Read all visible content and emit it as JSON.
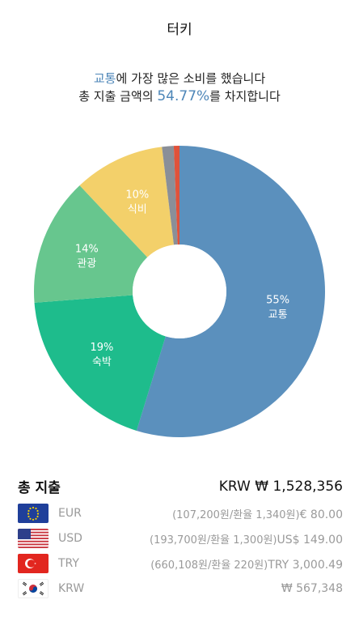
{
  "header": {
    "title": "터키"
  },
  "summary": {
    "line1_highlight": "교통",
    "line1_rest": "에 가장 많은 소비를 했습니다",
    "line2_prefix": "총 지출 금액의 ",
    "line2_pct": "54.77%",
    "line2_suffix": "를 차지합니다"
  },
  "chart_data": {
    "type": "pie",
    "style": "donut",
    "slices": [
      {
        "label": "교통",
        "percent_label": "55%",
        "value": 54.77,
        "color": "#5b90bd"
      },
      {
        "label": "숙박",
        "percent_label": "19%",
        "value": 19.0,
        "color": "#1ebc8c"
      },
      {
        "label": "관광",
        "percent_label": "14%",
        "value": 14.2,
        "color": "#67c68e"
      },
      {
        "label": "식비",
        "percent_label": "10%",
        "value": 10.1,
        "color": "#f3d06a"
      },
      {
        "label": "",
        "percent_label": "",
        "value": 1.3,
        "color": "#8a8f98"
      },
      {
        "label": "",
        "percent_label": "",
        "value": 0.63,
        "color": "#e0523a"
      }
    ]
  },
  "totals": {
    "label": "총 지출",
    "value": "KRW ₩ 1,528,356"
  },
  "currencies": [
    {
      "code": "EUR",
      "flag": "eu-flag-icon",
      "detail": "(107,200원/환율 1,340원)",
      "amount": "€ 80.00"
    },
    {
      "code": "USD",
      "flag": "us-flag-icon",
      "detail": "(193,700원/환율 1,300원)",
      "amount": "US$ 149.00"
    },
    {
      "code": "TRY",
      "flag": "tr-flag-icon",
      "detail": "(660,108원/환율 220원)",
      "amount": "TRY 3,000.49"
    },
    {
      "code": "KRW",
      "flag": "kr-flag-icon",
      "detail": "",
      "amount": "₩ 567,348"
    }
  ],
  "colors": {
    "accent": "#4d86b8",
    "muted_text": "#9a9a9a"
  }
}
